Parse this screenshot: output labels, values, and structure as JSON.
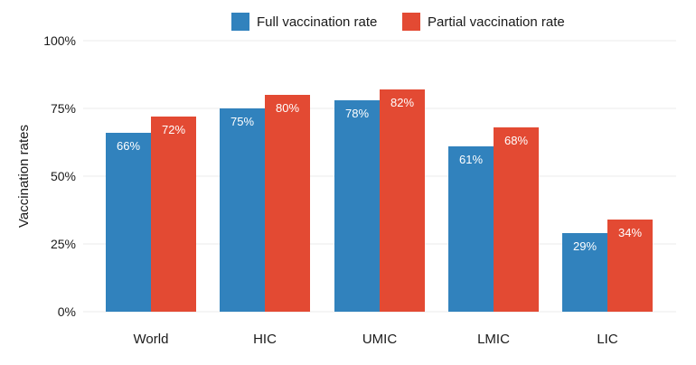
{
  "chart_data": {
    "type": "bar",
    "title": "",
    "xlabel": "",
    "ylabel": "Vaccination rates",
    "categories": [
      "World",
      "HIC",
      "UMIC",
      "LMIC",
      "LIC"
    ],
    "series": [
      {
        "name": "Full vaccination rate",
        "color": "#3182bd",
        "values": [
          66,
          75,
          78,
          61,
          29
        ],
        "labels": [
          "66%",
          "75%",
          "78%",
          "61%",
          "29%"
        ]
      },
      {
        "name": "Partial vaccination rate",
        "color": "#e34a33",
        "values": [
          72,
          80,
          82,
          68,
          34
        ],
        "labels": [
          "72%",
          "80%",
          "82%",
          "68%",
          "34%"
        ]
      }
    ],
    "ylim": [
      0,
      100
    ],
    "yticks": [
      0,
      25,
      50,
      75,
      100
    ],
    "ytick_labels": [
      "0%",
      "25%",
      "50%",
      "75%",
      "100%"
    ],
    "grid": true,
    "legend_position": "top"
  }
}
